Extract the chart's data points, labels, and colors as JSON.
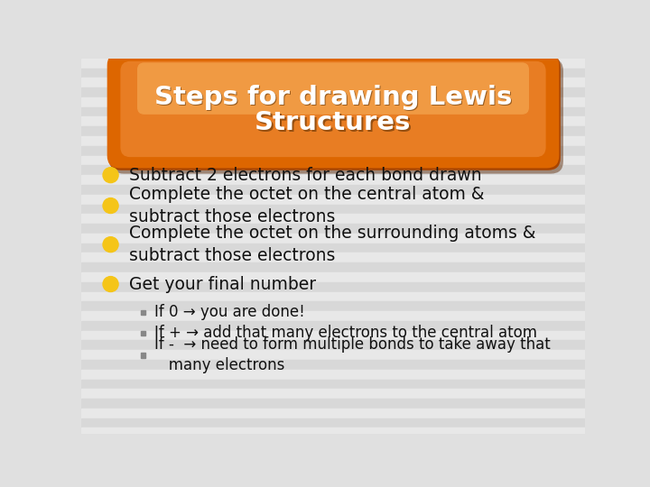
{
  "title_line1": "Steps for drawing Lewis",
  "title_line2": "Structures",
  "title_text_color": "#ffffff",
  "background_color": "#e0e0e0",
  "bullet_color": "#f5c518",
  "bullet_points": [
    "Subtract 2 electrons for each bond drawn",
    "Complete the octet on the central atom &\nsubtract those electrons",
    "Complete the octet on the surrounding atoms &\nsubtract those electrons",
    "Get your final number"
  ],
  "sub_bullets": [
    "If 0 → you are done!",
    "If + → add that many electrons to the central atom",
    "If -  → need to form multiple bonds to take away that\n   many electrons"
  ],
  "sub_bullet_color": "#888888",
  "stripe_light": "#e8e8e8",
  "stripe_dark": "#d8d8d8",
  "title_orange_dark": "#a84400",
  "title_orange_mid": "#cc5500",
  "title_orange_main": "#dd6600",
  "title_orange_bright": "#ee8833",
  "title_orange_top": "#f5aa55"
}
